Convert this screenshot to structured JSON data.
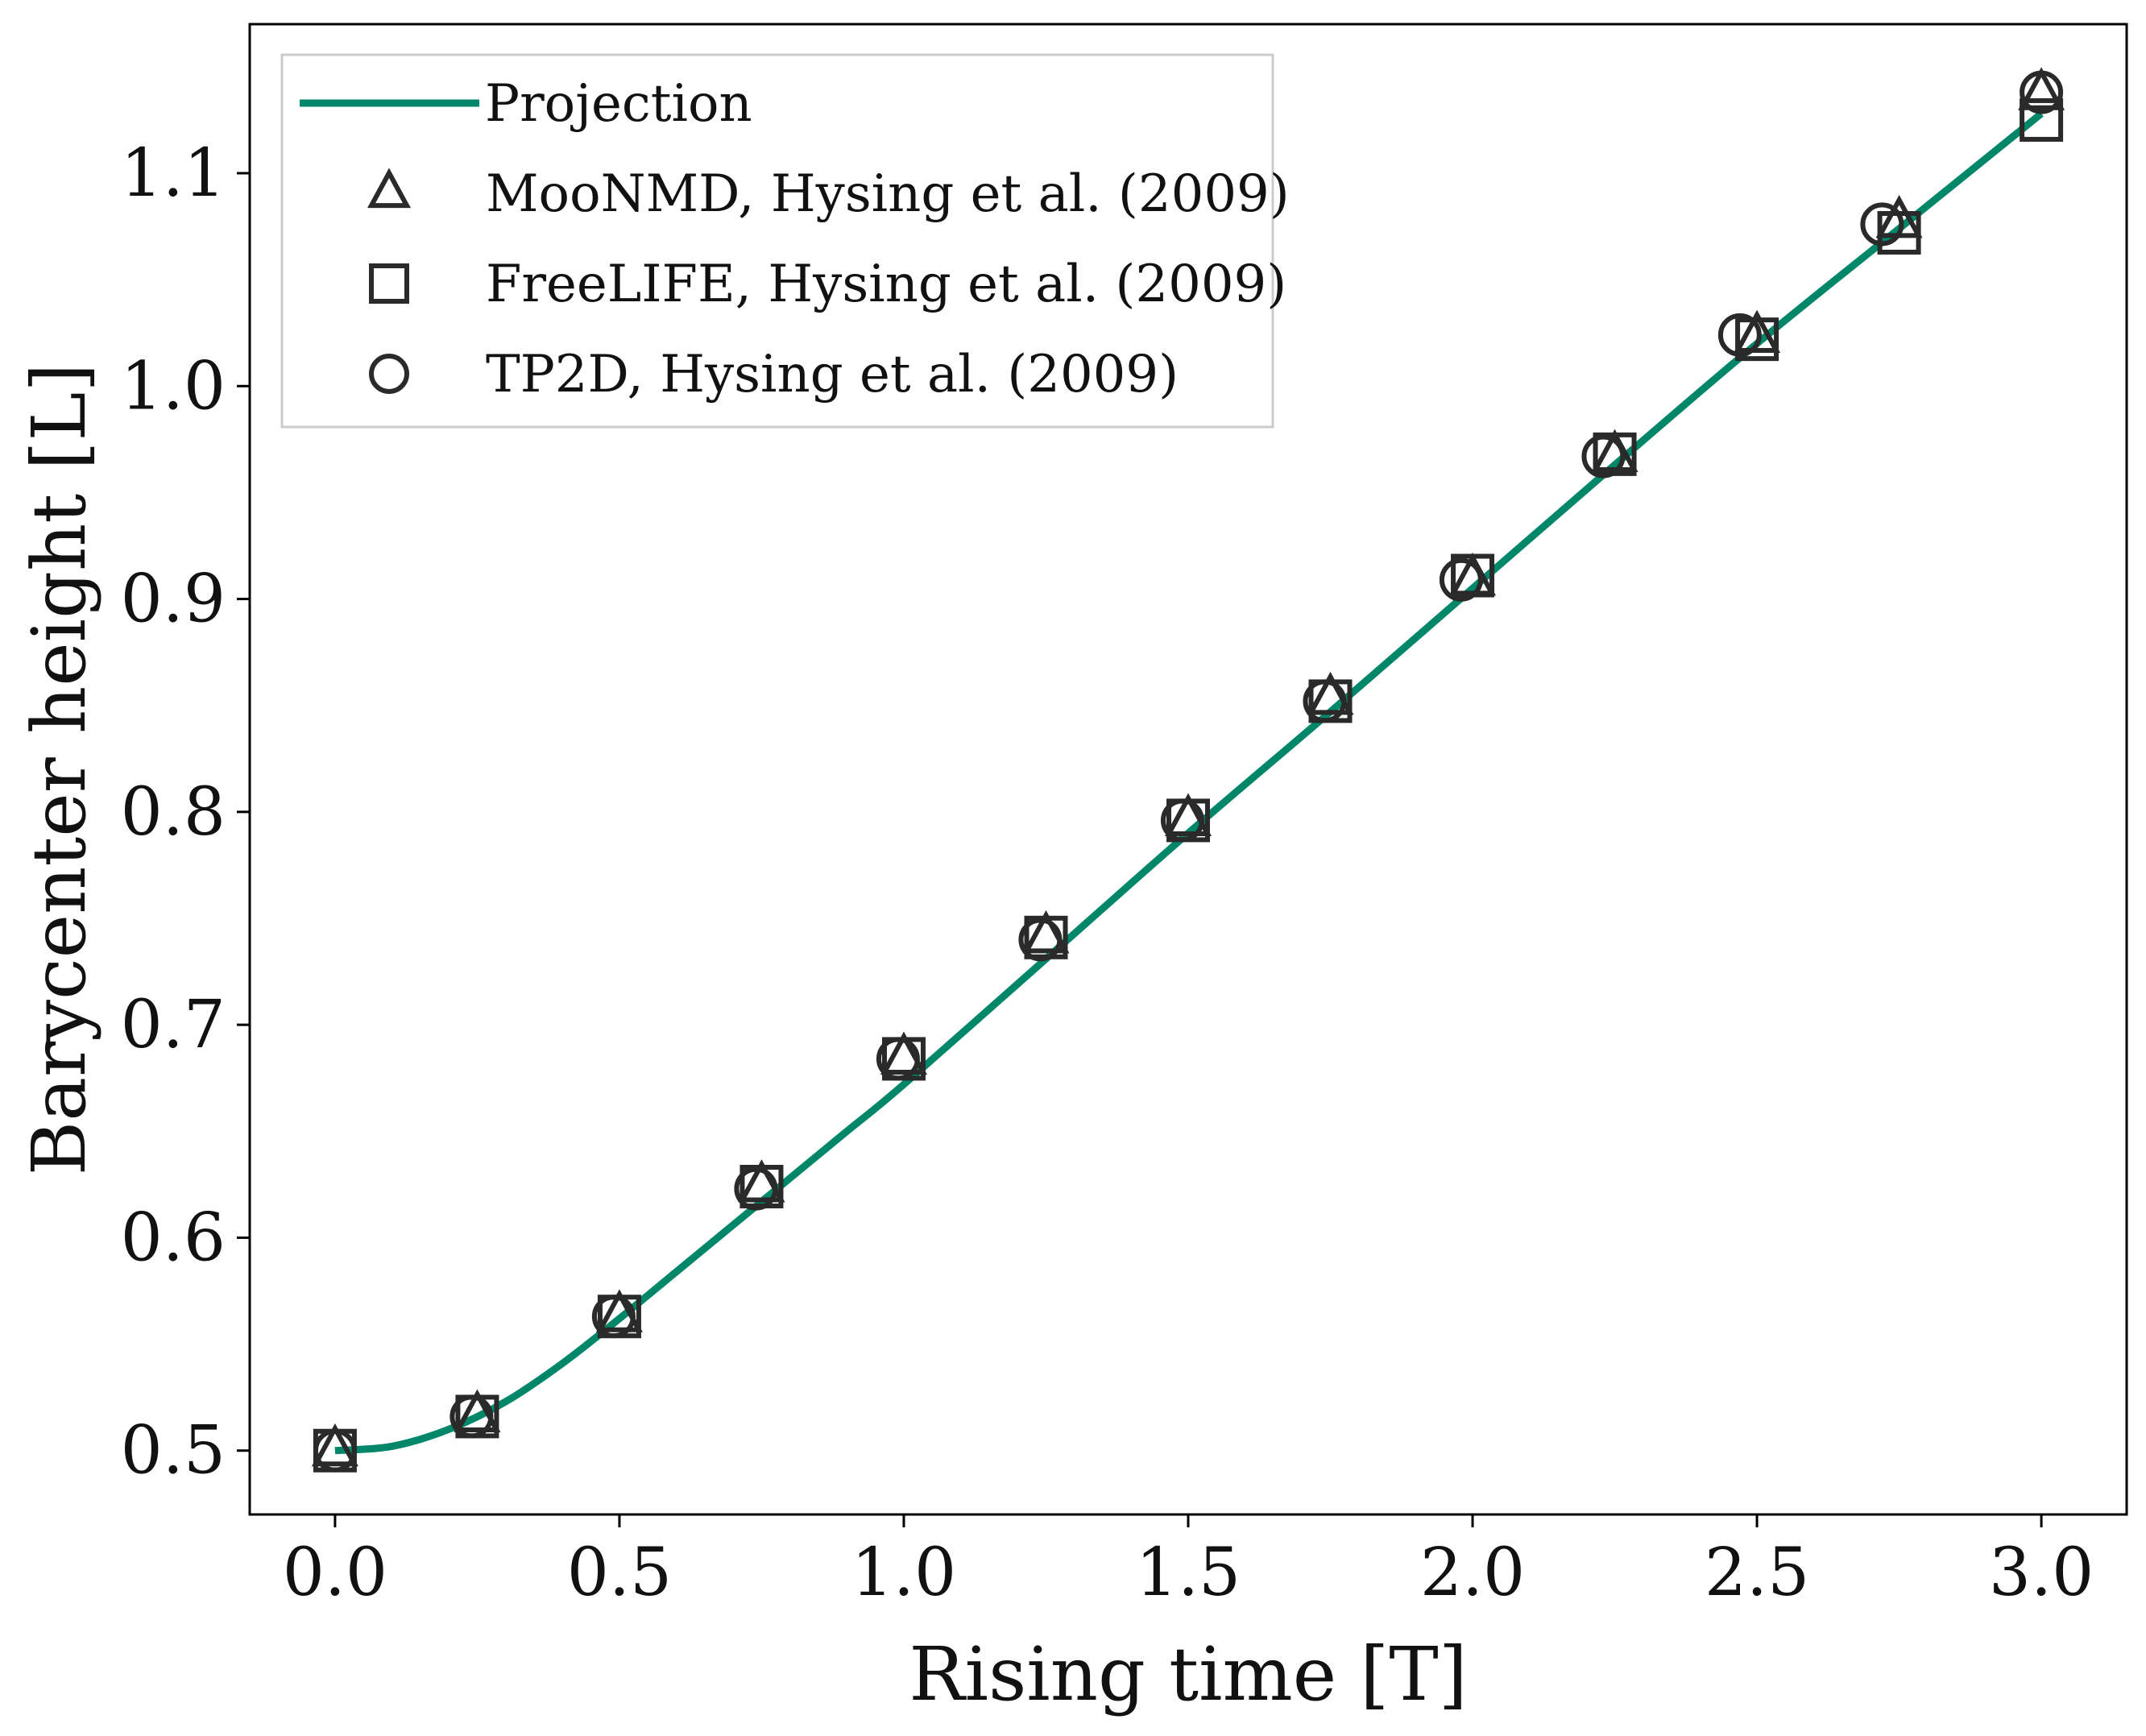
{
  "chart_data": {
    "type": "line",
    "xlabel": "Rising time [T]",
    "ylabel": "Barycenter height [L]",
    "xlim": [
      -0.15,
      3.15
    ],
    "ylim": [
      0.47,
      1.17
    ],
    "x_ticks": [
      "0.0",
      "0.5",
      "1.0",
      "1.5",
      "2.0",
      "2.5",
      "3.0"
    ],
    "y_ticks": [
      "0.5",
      "0.6",
      "0.7",
      "0.8",
      "0.9",
      "1.0",
      "1.1"
    ],
    "grid": false,
    "legend_placement": "top-left",
    "colors": {
      "line": "#00876a",
      "markers": "#2a2a2a",
      "frame": "#000000",
      "legend_border": "#cccccc"
    },
    "series": [
      {
        "name": "Projection",
        "style": "line",
        "x": [
          0.0,
          0.1,
          0.2,
          0.3,
          0.4,
          0.5,
          0.6,
          0.7,
          0.8,
          0.9,
          1.0,
          1.25,
          1.5,
          1.75,
          2.0,
          2.25,
          2.5,
          2.75,
          3.0
        ],
        "y": [
          0.5,
          0.502,
          0.51,
          0.523,
          0.541,
          0.562,
          0.584,
          0.606,
          0.628,
          0.65,
          0.672,
          0.731,
          0.79,
          0.847,
          0.905,
          0.963,
          1.02,
          1.074,
          1.128
        ]
      },
      {
        "name": "MooNMD, Hysing et al. (2009)",
        "style": "triangle",
        "x": [
          0.0,
          0.25,
          0.5,
          0.75,
          1.0,
          1.25,
          1.5,
          1.75,
          2.0,
          2.25,
          2.5,
          2.75,
          3.0
        ],
        "y": [
          0.5,
          0.516,
          0.563,
          0.624,
          0.684,
          0.741,
          0.796,
          0.853,
          0.909,
          0.967,
          1.023,
          1.077,
          1.137
        ]
      },
      {
        "name": "FreeLIFE, Hysing et al. (2009)",
        "style": "square",
        "x": [
          0.0,
          0.25,
          0.5,
          0.75,
          1.0,
          1.25,
          1.5,
          1.75,
          2.0,
          2.25,
          2.5,
          2.75,
          3.0
        ],
        "y": [
          0.5,
          0.516,
          0.563,
          0.624,
          0.684,
          0.741,
          0.796,
          0.852,
          0.911,
          0.968,
          1.022,
          1.072,
          1.125
        ]
      },
      {
        "name": "TP2D, Hysing et al. (2009)",
        "style": "circle",
        "x": [
          0.0,
          0.24,
          0.49,
          0.74,
          0.99,
          1.24,
          1.49,
          1.74,
          1.98,
          2.23,
          2.47,
          2.72,
          3.0
        ],
        "y": [
          0.5,
          0.516,
          0.563,
          0.623,
          0.684,
          0.74,
          0.796,
          0.852,
          0.909,
          0.967,
          1.024,
          1.076,
          1.138
        ]
      }
    ]
  }
}
